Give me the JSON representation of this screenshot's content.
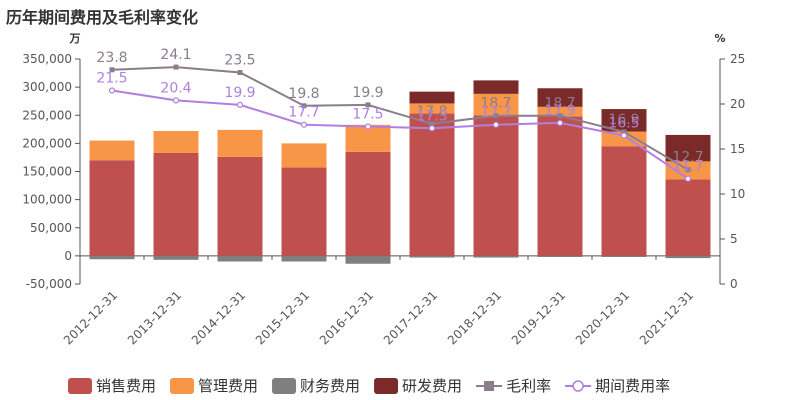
{
  "title": "历年期间费用及毛利率变化",
  "chart_data": {
    "type": "bar",
    "title": "历年期间费用及毛利率变化",
    "y_left_unit": "万",
    "y_right_unit": "%",
    "ylim_left": [
      -50000,
      350000
    ],
    "yticks_left": [
      "-50,000",
      "0",
      "50,000",
      "100,000",
      "150,000",
      "200,000",
      "250,000",
      "300,000",
      "350,000"
    ],
    "ylim_right": [
      0,
      25
    ],
    "yticks_right": [
      "0",
      "5",
      "10",
      "15",
      "20",
      "25"
    ],
    "categories": [
      "2012-12-31",
      "2013-12-31",
      "2014-12-31",
      "2015-12-31",
      "2016-12-31",
      "2017-12-31",
      "2018-12-31",
      "2019-12-31",
      "2020-12-31",
      "2021-12-31"
    ],
    "bar_series": [
      {
        "name": "销售费用",
        "color": "#c0504d",
        "values": [
          170000,
          183000,
          176000,
          157000,
          185000,
          253000,
          250000,
          248000,
          195000,
          136000
        ]
      },
      {
        "name": "管理费用",
        "color": "#f79646",
        "values": [
          35000,
          39000,
          48000,
          43000,
          48000,
          18000,
          38000,
          17000,
          26000,
          32000
        ]
      },
      {
        "name": "财务费用",
        "color": "#7f7f7f",
        "values": [
          -6000,
          -7000,
          -10000,
          -10000,
          -14000,
          -3000,
          -3000,
          -2000,
          -2000,
          -4000
        ]
      },
      {
        "name": "研发费用",
        "color": "#7b2a2a",
        "values": [
          0,
          0,
          0,
          0,
          0,
          21000,
          24000,
          33000,
          40000,
          47000
        ]
      }
    ],
    "line_series": [
      {
        "name": "毛利率",
        "color": "#8b7d8b",
        "marker": "square",
        "values": [
          23.8,
          24.1,
          23.5,
          19.8,
          19.9,
          17.8,
          18.7,
          18.7,
          16.9,
          12.7
        ],
        "labels": [
          "23.8",
          "24.1",
          "23.5",
          "19.8",
          "19.9",
          "17.8",
          "18.7",
          "18.7",
          "16.9",
          "12.7"
        ]
      },
      {
        "name": "期间费用率",
        "color": "#b07fe0",
        "marker": "circle",
        "values": [
          21.5,
          20.4,
          19.9,
          17.7,
          17.5,
          17.3,
          17.7,
          17.9,
          16.5,
          11.7
        ],
        "labels": [
          "21.5",
          "20.4",
          "19.9",
          "17.7",
          "17.5",
          "17.3",
          "17.7",
          "17.9",
          "16.5",
          "11.7"
        ]
      }
    ],
    "legend_position": "bottom"
  }
}
